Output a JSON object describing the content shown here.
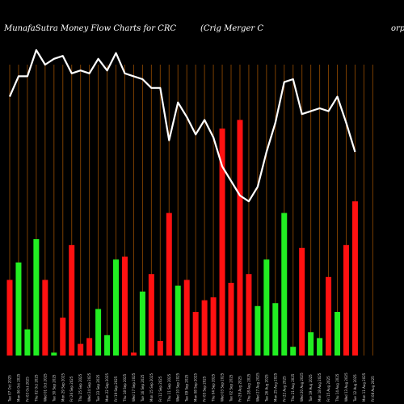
{
  "header": {
    "left": "MunafaSutra  Money Flow  Charts for CRC",
    "middle": "(Crig Merger C",
    "right": "orp"
  },
  "chart_data": {
    "type": "bar",
    "grid": true,
    "ylim": [
      0,
      100
    ],
    "line_ylim": [
      0,
      100
    ],
    "categories": [
      "Tue 07 Oct 2025",
      "Mon 06 Oct 2025",
      "Fri 03 Oct 2025",
      "Thu 02 Oct 2025",
      "Wed 01 Oct 2025",
      "Tue 30 Sep 2025",
      "Mon 29 Sep 2025",
      "Fri 26 Sep 2025",
      "Thu 25 Sep 2025",
      "Wed 24 Sep 2025",
      "Tue 23 Sep 2025",
      "Mon 22 Sep 2025",
      "Fri 19 Sep 2025",
      "Thu 18 Sep 2025",
      "Wed 17 Sep 2025",
      "Tue 16 Sep 2025",
      "Mon 15 Sep 2025",
      "Fri 12 Sep 2025",
      "Thu 11 Sep 2025",
      "Wed 10 Sep 2025",
      "Tue 09 Sep 2025",
      "Mon 08 Sep 2025",
      "Fri 05 Sep 2025",
      "Thu 04 Sep 2025",
      "Wed 03 Sep 2025",
      "Tue 02 Sep 2025",
      "Fri 29 Aug 2025",
      "Thu 28 Aug 2025",
      "Wed 27 Aug 2025",
      "Tue 26 Aug 2025",
      "Mon 25 Aug 2025",
      "Fri 22 Aug 2025",
      "Thu 21 Aug 2025",
      "Wed 20 Aug 2025",
      "Tue 19 Aug 2025",
      "Mon 18 Aug 2025",
      "Fri 15 Aug 2025",
      "Thu 14 Aug 2025",
      "Wed 13 Aug 2025",
      "Tue 12 Aug 2025",
      "Mon 11 Aug 2025",
      "Fri 08 Aug 2025"
    ],
    "series": [
      {
        "values": [
          26,
          32,
          9,
          40,
          26,
          1,
          13,
          38,
          4,
          6,
          16,
          7,
          33,
          34,
          1,
          22,
          28,
          5,
          49,
          24,
          26,
          15,
          19,
          20,
          78,
          25,
          81,
          28,
          17,
          33,
          18,
          49,
          3,
          37,
          8,
          6,
          27,
          15,
          38,
          53,
          0,
          0
        ],
        "colors": [
          "red",
          "green",
          "green",
          "green",
          "red",
          "green",
          "red",
          "red",
          "red",
          "red",
          "green",
          "green",
          "green",
          "red",
          "red",
          "green",
          "red",
          "red",
          "red",
          "green",
          "red",
          "red",
          "red",
          "red",
          "red",
          "red",
          "red",
          "red",
          "green",
          "green",
          "green",
          "green",
          "green",
          "red",
          "green",
          "green",
          "red",
          "green",
          "red",
          "red",
          "red",
          "red"
        ]
      },
      {
        "values": [
          89,
          96,
          96,
          105,
          100,
          102,
          103,
          97,
          98,
          97,
          102,
          98,
          104,
          97,
          96,
          95,
          92,
          92,
          74,
          87,
          82,
          76,
          81,
          75,
          65,
          60,
          55,
          53,
          58,
          70,
          80,
          94,
          95,
          83,
          84,
          85,
          84,
          89,
          80,
          70,
          0,
          0
        ]
      }
    ]
  },
  "colors": {
    "up": "#22ee22",
    "down": "#ff1111",
    "line": "#ffffff",
    "grid": "#7a3e00",
    "background": "#000000"
  }
}
